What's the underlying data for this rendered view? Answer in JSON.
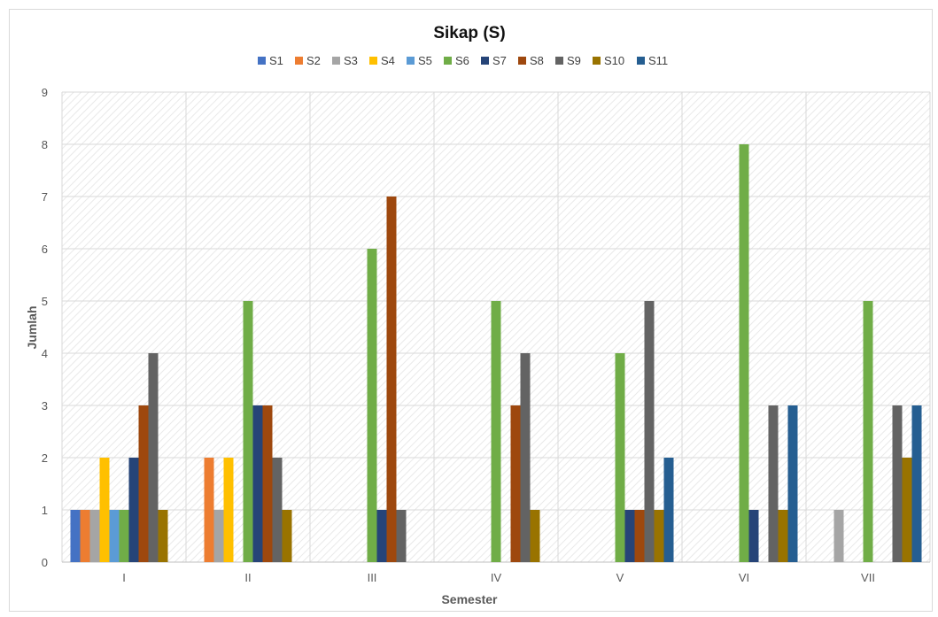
{
  "chart_data": {
    "type": "bar",
    "title": "Sikap (S)",
    "xlabel": "Semester",
    "ylabel": "Jumlah",
    "categories": [
      "I",
      "II",
      "III",
      "IV",
      "V",
      "VI",
      "VII"
    ],
    "ylim": [
      0,
      9
    ],
    "yticks": [
      "0",
      "1",
      "2",
      "3",
      "4",
      "5",
      "6",
      "7",
      "8",
      "9"
    ],
    "grid": true,
    "legend_position": "top",
    "series": [
      {
        "name": "S1",
        "color": "#4472C4",
        "values": [
          1,
          0,
          0,
          0,
          0,
          0,
          0
        ]
      },
      {
        "name": "S2",
        "color": "#ED7D31",
        "values": [
          1,
          2,
          0,
          0,
          0,
          0,
          0
        ]
      },
      {
        "name": "S3",
        "color": "#A5A5A5",
        "values": [
          1,
          1,
          0,
          0,
          0,
          0,
          1
        ]
      },
      {
        "name": "S4",
        "color": "#FFC000",
        "values": [
          2,
          2,
          0,
          0,
          0,
          0,
          0
        ]
      },
      {
        "name": "S5",
        "color": "#5B9BD5",
        "values": [
          1,
          0,
          0,
          0,
          0,
          0,
          0
        ]
      },
      {
        "name": "S6",
        "color": "#70AD47",
        "values": [
          1,
          5,
          6,
          5,
          4,
          8,
          5
        ]
      },
      {
        "name": "S7",
        "color": "#264478",
        "values": [
          2,
          3,
          1,
          0,
          1,
          1,
          0
        ]
      },
      {
        "name": "S8",
        "color": "#9E480E",
        "values": [
          3,
          3,
          7,
          3,
          1,
          0,
          0
        ]
      },
      {
        "name": "S9",
        "color": "#636363",
        "values": [
          4,
          2,
          1,
          4,
          5,
          3,
          3
        ]
      },
      {
        "name": "S10",
        "color": "#997300",
        "values": [
          1,
          1,
          0,
          1,
          1,
          1,
          2
        ]
      },
      {
        "name": "S11",
        "color": "#255E91",
        "values": [
          0,
          0,
          0,
          0,
          2,
          3,
          3
        ]
      }
    ]
  }
}
